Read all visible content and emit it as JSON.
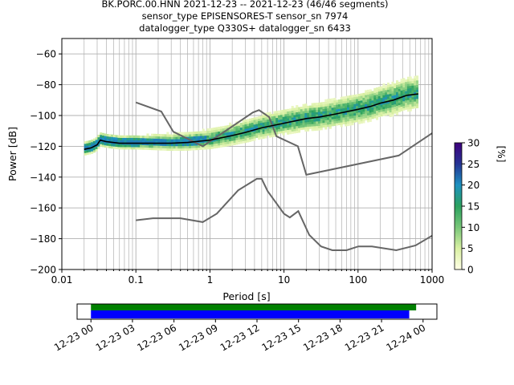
{
  "title_lines": [
    "BK.PORC.00.HNN   2021-12-23 -- 2021-12-23  (46/46 segments)",
    "sensor_type EPISENSORES-T sensor_sn 7974",
    "datalogger_type Q330S+ datalogger_sn 6433"
  ],
  "chart_data": [
    {
      "type": "heatmap",
      "xlabel": "Period [s]",
      "ylabel": "Power [dB]",
      "x_scale": "log",
      "xlim": [
        0.01,
        1000
      ],
      "ylim": [
        -200,
        -50
      ],
      "x_tick_labels": [
        "0.01",
        "0.1",
        "1",
        "10",
        "100",
        "1000"
      ],
      "y_ticks": [
        -200,
        -180,
        -160,
        -140,
        -120,
        -100,
        -80,
        -60
      ],
      "y_tick_labels": [
        "−200",
        "−180",
        "−160",
        "−140",
        "−120",
        "−100",
        "−80",
        "−60"
      ],
      "grid": true,
      "psd_density": {
        "period_range": [
          0.02,
          650
        ],
        "spread_db": 12,
        "colormap": [
          "#ffffe5",
          "#d9f0a3",
          "#78c679",
          "#2ca25f",
          "#1d91c0",
          "#253494",
          "#3f007d"
        ]
      },
      "mode_curve": {
        "color": "#000000",
        "x": [
          0.02,
          0.025,
          0.03,
          0.033,
          0.04,
          0.06,
          0.1,
          0.2,
          0.3,
          0.5,
          1,
          2,
          3,
          5,
          10,
          20,
          30,
          50,
          100,
          150,
          200,
          300,
          450,
          650
        ],
        "y": [
          -122,
          -121,
          -119,
          -116,
          -117,
          -118,
          -118,
          -118,
          -118,
          -117.5,
          -116,
          -113,
          -111,
          -108,
          -105,
          -102,
          -101,
          -99,
          -96,
          -94,
          -92,
          -90,
          -87,
          -86
        ]
      },
      "nhnm_curve": {
        "color": "#666666",
        "x": [
          0.1,
          0.22,
          0.32,
          0.8,
          3.8,
          4.6,
          6.3,
          7.9,
          15.4,
          20,
          354.8,
          1000
        ],
        "y": [
          -91.5,
          -97.4,
          -110.5,
          -120,
          -98,
          -96.5,
          -101,
          -113.5,
          -120,
          -138.5,
          -126,
          -111.5
        ]
      },
      "nlnm_curve": {
        "color": "#666666",
        "x": [
          0.1,
          0.17,
          0.4,
          0.8,
          1.24,
          2.4,
          4.3,
          5,
          6,
          10,
          12,
          15.6,
          21.9,
          31.6,
          45,
          70,
          101,
          154,
          328,
          600,
          1000
        ],
        "y": [
          -168,
          -166.7,
          -166.7,
          -169.2,
          -163.7,
          -148.6,
          -141.1,
          -141.1,
          -149,
          -163.8,
          -166.2,
          -162.1,
          -177.5,
          -185,
          -187.5,
          -187.5,
          -185,
          -185,
          -187.5,
          -184.4,
          -178
        ]
      }
    },
    {
      "type": "heatmap",
      "ylabel": "[%]",
      "values": [
        0,
        30
      ],
      "ticks": [
        0,
        5,
        10,
        15,
        20,
        25,
        30
      ],
      "tick_labels": [
        "0",
        "5",
        "10",
        "15",
        "20",
        "25",
        "30"
      ],
      "colormap": [
        "#ffffe5",
        "#d9f0a3",
        "#78c679",
        "#2ca25f",
        "#1d91c0",
        "#253494",
        "#3f007d"
      ]
    },
    {
      "type": "bar",
      "orientation": "horizontal",
      "time_tick_labels": [
        "12-23 00",
        "12-23 03",
        "12-23 06",
        "12-23 09",
        "12-23 12",
        "12-23 15",
        "12-23 18",
        "12-23 21",
        "12-24 00"
      ],
      "xlim_hours": [
        -1,
        25
      ],
      "series": [
        {
          "color": "#008000",
          "start_hour": 0,
          "end_hour": 23.5
        },
        {
          "color": "#0000ff",
          "start_hour": 0,
          "end_hour": 23.0
        }
      ]
    }
  ]
}
